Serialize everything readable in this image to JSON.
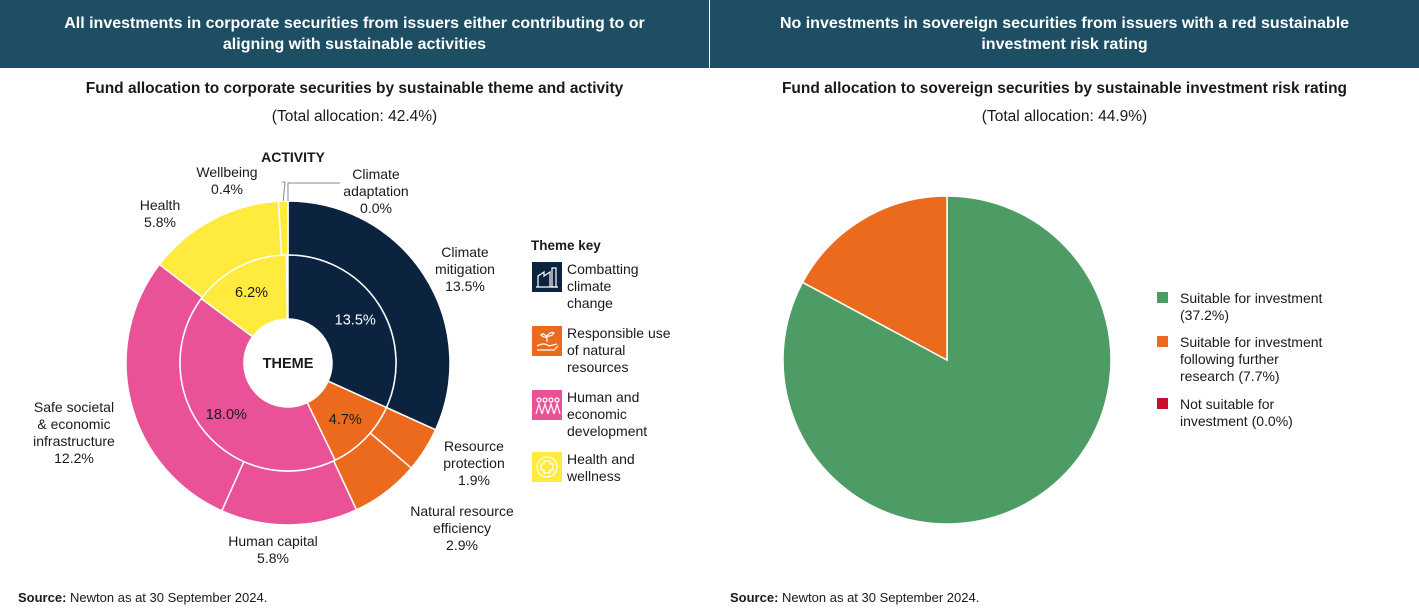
{
  "left": {
    "header": "All investments in corporate securities from issuers either contributing to or aligning with sustainable activities",
    "subtitle": "Fund allocation to corporate securities by sustainable theme and activity",
    "total": "(Total allocation: 42.4%)",
    "source_label": "Source:",
    "source_text": "Newton as at 30 September 2024."
  },
  "right": {
    "header": "No investments in sovereign securities from issuers with a red sustainable investment risk rating",
    "subtitle": "Fund allocation to sovereign securities by sustainable investment risk rating",
    "total": "(Total allocation: 44.9%)",
    "source_label": "Source:",
    "source_text": "Newton as at 30 September 2024."
  },
  "chart_data": [
    {
      "type": "pie",
      "ring_labels": {
        "outer": "ACTIVITY",
        "inner": "THEME"
      },
      "inner_ring": [
        {
          "theme": "Combatting climate change",
          "value": 13.5,
          "label": "13.5%",
          "color": "#0c2340"
        },
        {
          "theme": "Responsible use of natural resources",
          "value": 4.7,
          "label": "4.7%",
          "color": "#ec6a1e"
        },
        {
          "theme": "Human and economic development",
          "value": 18.0,
          "label": "18.0%",
          "color": "#ea5297"
        },
        {
          "theme": "Health and wellness",
          "value": 6.2,
          "label": "6.2%",
          "color": "#ffea3d"
        }
      ],
      "outer_ring": [
        {
          "name": "Climate adaptation",
          "value": 0.0,
          "label": "Climate\nadaptation\n0.0%",
          "color": "#0c2340"
        },
        {
          "name": "Climate mitigation",
          "value": 13.5,
          "label": "Climate\nmitigation\n13.5%",
          "color": "#0c2340"
        },
        {
          "name": "Resource protection",
          "value": 1.9,
          "label": "Resource\nprotection\n1.9%",
          "color": "#ec6a1e"
        },
        {
          "name": "Natural resource efficiency",
          "value": 2.9,
          "label": "Natural resource\nefficiency\n2.9%",
          "color": "#ec6a1e"
        },
        {
          "name": "Human capital",
          "value": 5.8,
          "label": "Human capital\n5.8%",
          "color": "#ea5297"
        },
        {
          "name": "Safe societal & economic infrastructure",
          "value": 12.2,
          "label": "Safe societal\n& economic\ninfrastructure\n12.2%",
          "color": "#ea5297"
        },
        {
          "name": "Health",
          "value": 5.8,
          "label": "Health\n5.8%",
          "color": "#ffea3d"
        },
        {
          "name": "Wellbeing",
          "value": 0.4,
          "label": "Wellbeing\n0.4%",
          "color": "#ffea3d"
        }
      ],
      "legend": {
        "title": "Theme key",
        "items": [
          {
            "label": "Combatting\nclimate\nchange",
            "color": "#0c2340",
            "icon": "factory-icon"
          },
          {
            "label": "Responsible use\nof natural\nresources",
            "color": "#ec6a1e",
            "icon": "hand-sprout-icon"
          },
          {
            "label": "Human and\neconomic\ndevelopment",
            "color": "#ea5297",
            "icon": "people-icon"
          },
          {
            "label": "Health and\nwellness",
            "color": "#ffea3d",
            "icon": "medical-cross-icon"
          }
        ]
      }
    },
    {
      "type": "pie",
      "slices": [
        {
          "name": "Suitable for investment",
          "value": 37.2,
          "color": "#4e9c65"
        },
        {
          "name": "Suitable for investment following further research",
          "value": 7.7,
          "color": "#ec6a1e"
        },
        {
          "name": "Not suitable for investment",
          "value": 0.0,
          "color": "#c8102e"
        }
      ],
      "legend": {
        "items": [
          {
            "label": "Suitable for investment\n(37.2%)",
            "color": "#4e9c65"
          },
          {
            "label": "Suitable for investment\nfollowing further\nresearch (7.7%)",
            "color": "#ec6a1e"
          },
          {
            "label": "Not suitable for\ninvestment (0.0%)",
            "color": "#c8102e"
          }
        ]
      }
    }
  ]
}
